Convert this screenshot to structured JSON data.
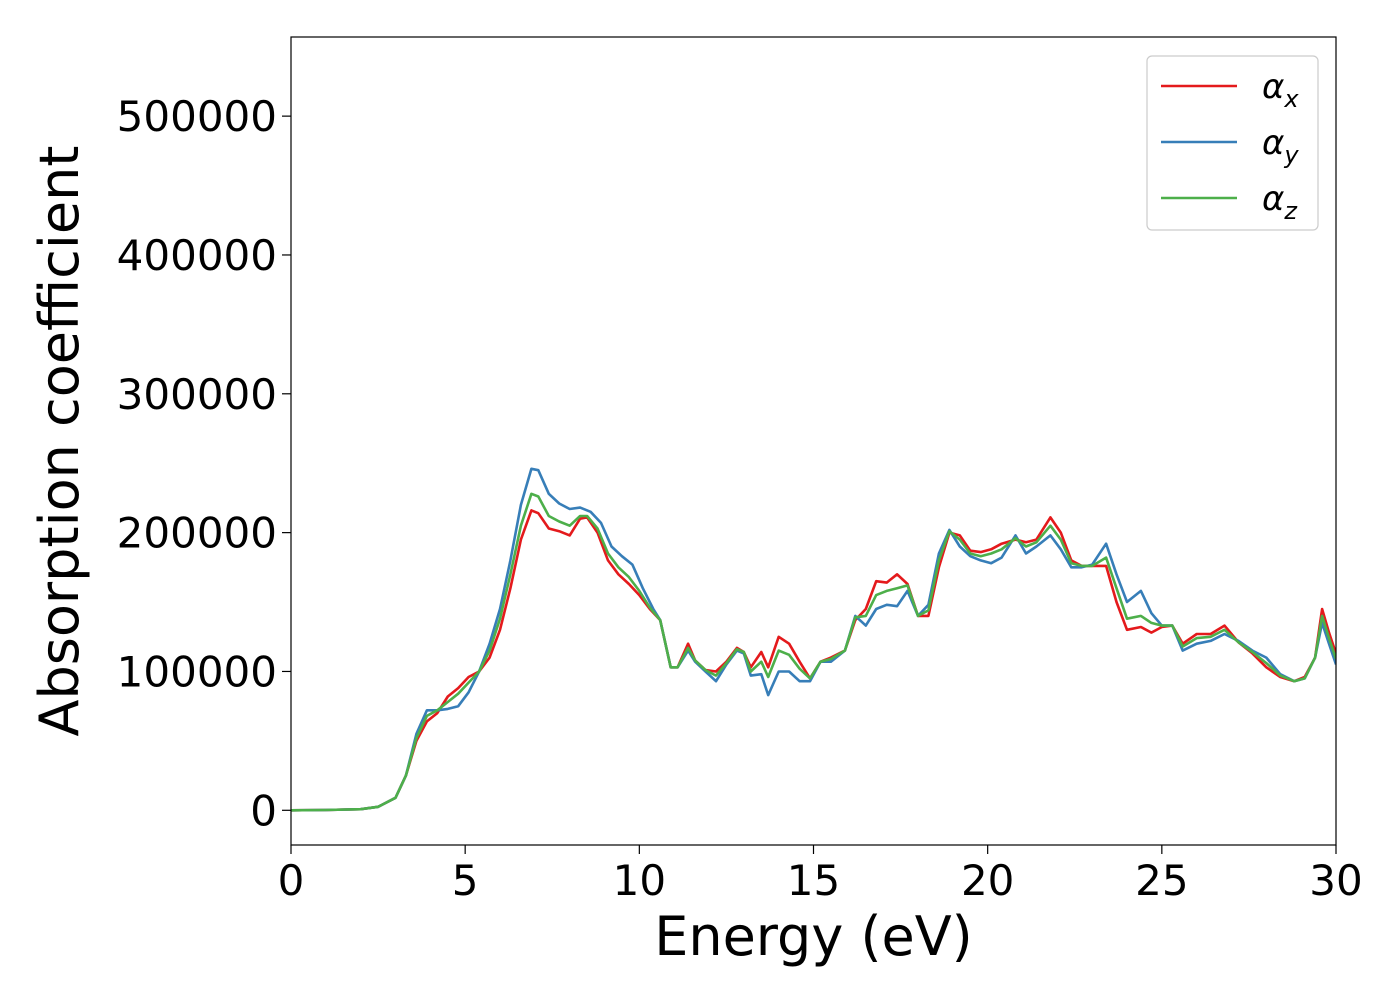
{
  "chart_data": {
    "type": "line",
    "title": "",
    "xlabel": "Energy (eV)",
    "ylabel": "Absorption coefficient",
    "xlim": [
      0,
      30
    ],
    "ylim": [
      -25000,
      557000
    ],
    "xticks": [
      0,
      5,
      10,
      15,
      20,
      25,
      30
    ],
    "xtick_labels": [
      "0",
      "5",
      "10",
      "15",
      "20",
      "25",
      "30"
    ],
    "yticks": [
      0,
      100000,
      200000,
      300000,
      400000,
      500000
    ],
    "ytick_labels": [
      "0",
      "100000",
      "200000",
      "300000",
      "400000",
      "500000"
    ],
    "grid": false,
    "legend_position": "top-right",
    "series": [
      {
        "name": "α_x",
        "legend_symbol": "α",
        "legend_sub": "x",
        "color": "#e41a1c",
        "points": [
          [
            0,
            0
          ],
          [
            1,
            200
          ],
          [
            2,
            800
          ],
          [
            2.5,
            2500
          ],
          [
            3,
            9000
          ],
          [
            3.3,
            25000
          ],
          [
            3.6,
            50000
          ],
          [
            3.9,
            64000
          ],
          [
            4.2,
            70000
          ],
          [
            4.5,
            82000
          ],
          [
            4.8,
            88000
          ],
          [
            5.1,
            96000
          ],
          [
            5.4,
            100000
          ],
          [
            5.7,
            110000
          ],
          [
            6.0,
            130000
          ],
          [
            6.3,
            160000
          ],
          [
            6.6,
            195000
          ],
          [
            6.9,
            216000
          ],
          [
            7.1,
            214000
          ],
          [
            7.4,
            203000
          ],
          [
            7.7,
            201000
          ],
          [
            8.0,
            198000
          ],
          [
            8.3,
            210000
          ],
          [
            8.5,
            211000
          ],
          [
            8.8,
            200000
          ],
          [
            9.1,
            180000
          ],
          [
            9.4,
            170000
          ],
          [
            9.7,
            163000
          ],
          [
            10.0,
            155000
          ],
          [
            10.3,
            145000
          ],
          [
            10.6,
            137000
          ],
          [
            10.9,
            103000
          ],
          [
            11.1,
            103000
          ],
          [
            11.4,
            120000
          ],
          [
            11.6,
            108000
          ],
          [
            11.9,
            101000
          ],
          [
            12.2,
            100000
          ],
          [
            12.5,
            107000
          ],
          [
            12.8,
            117000
          ],
          [
            13.0,
            114000
          ],
          [
            13.2,
            103000
          ],
          [
            13.5,
            114000
          ],
          [
            13.7,
            103000
          ],
          [
            14.0,
            125000
          ],
          [
            14.3,
            120000
          ],
          [
            14.6,
            107000
          ],
          [
            14.9,
            95000
          ],
          [
            15.2,
            107000
          ],
          [
            15.5,
            110000
          ],
          [
            15.9,
            115000
          ],
          [
            16.2,
            137000
          ],
          [
            16.5,
            145000
          ],
          [
            16.8,
            165000
          ],
          [
            17.1,
            164000
          ],
          [
            17.4,
            170000
          ],
          [
            17.7,
            163000
          ],
          [
            18.0,
            140000
          ],
          [
            18.3,
            140000
          ],
          [
            18.6,
            175000
          ],
          [
            18.9,
            200000
          ],
          [
            19.2,
            198000
          ],
          [
            19.5,
            187000
          ],
          [
            19.8,
            186000
          ],
          [
            20.1,
            188000
          ],
          [
            20.4,
            192000
          ],
          [
            20.8,
            195000
          ],
          [
            21.1,
            193000
          ],
          [
            21.4,
            195000
          ],
          [
            21.8,
            211000
          ],
          [
            22.1,
            200000
          ],
          [
            22.4,
            180000
          ],
          [
            22.7,
            176000
          ],
          [
            23.0,
            176000
          ],
          [
            23.4,
            176000
          ],
          [
            23.7,
            150000
          ],
          [
            24.0,
            130000
          ],
          [
            24.4,
            132000
          ],
          [
            24.7,
            128000
          ],
          [
            25.0,
            132000
          ],
          [
            25.3,
            133000
          ],
          [
            25.6,
            120000
          ],
          [
            26.0,
            127000
          ],
          [
            26.4,
            127000
          ],
          [
            26.8,
            133000
          ],
          [
            27.2,
            121000
          ],
          [
            27.6,
            113000
          ],
          [
            28.0,
            103000
          ],
          [
            28.4,
            96000
          ],
          [
            28.8,
            93000
          ],
          [
            29.1,
            96000
          ],
          [
            29.4,
            110000
          ],
          [
            29.6,
            145000
          ],
          [
            29.8,
            128000
          ],
          [
            30.0,
            113000
          ]
        ]
      },
      {
        "name": "α_y",
        "legend_symbol": "α",
        "legend_sub": "y",
        "color": "#377eb8",
        "points": [
          [
            0,
            0
          ],
          [
            1,
            200
          ],
          [
            2,
            800
          ],
          [
            2.5,
            2500
          ],
          [
            3,
            9000
          ],
          [
            3.3,
            25000
          ],
          [
            3.6,
            55000
          ],
          [
            3.9,
            72000
          ],
          [
            4.2,
            72000
          ],
          [
            4.5,
            73000
          ],
          [
            4.8,
            75000
          ],
          [
            5.1,
            85000
          ],
          [
            5.4,
            100000
          ],
          [
            5.7,
            120000
          ],
          [
            6.0,
            145000
          ],
          [
            6.3,
            180000
          ],
          [
            6.6,
            220000
          ],
          [
            6.9,
            246000
          ],
          [
            7.1,
            245000
          ],
          [
            7.4,
            228000
          ],
          [
            7.7,
            221000
          ],
          [
            8.0,
            217000
          ],
          [
            8.3,
            218000
          ],
          [
            8.6,
            215000
          ],
          [
            8.9,
            207000
          ],
          [
            9.2,
            190000
          ],
          [
            9.5,
            183000
          ],
          [
            9.8,
            177000
          ],
          [
            10.1,
            160000
          ],
          [
            10.4,
            145000
          ],
          [
            10.6,
            137000
          ],
          [
            10.9,
            103000
          ],
          [
            11.1,
            103000
          ],
          [
            11.4,
            115000
          ],
          [
            11.6,
            107000
          ],
          [
            11.9,
            100000
          ],
          [
            12.2,
            93000
          ],
          [
            12.5,
            105000
          ],
          [
            12.8,
            115000
          ],
          [
            13.0,
            113000
          ],
          [
            13.2,
            97000
          ],
          [
            13.5,
            98000
          ],
          [
            13.7,
            83000
          ],
          [
            14.0,
            100000
          ],
          [
            14.3,
            100000
          ],
          [
            14.6,
            93000
          ],
          [
            14.9,
            93000
          ],
          [
            15.2,
            107000
          ],
          [
            15.5,
            107000
          ],
          [
            15.9,
            115000
          ],
          [
            16.2,
            140000
          ],
          [
            16.5,
            133000
          ],
          [
            16.8,
            145000
          ],
          [
            17.1,
            148000
          ],
          [
            17.4,
            147000
          ],
          [
            17.7,
            158000
          ],
          [
            18.0,
            140000
          ],
          [
            18.3,
            148000
          ],
          [
            18.6,
            185000
          ],
          [
            18.9,
            202000
          ],
          [
            19.2,
            190000
          ],
          [
            19.5,
            183000
          ],
          [
            19.8,
            180000
          ],
          [
            20.1,
            178000
          ],
          [
            20.4,
            182000
          ],
          [
            20.8,
            198000
          ],
          [
            21.1,
            185000
          ],
          [
            21.4,
            190000
          ],
          [
            21.8,
            198000
          ],
          [
            22.1,
            188000
          ],
          [
            22.4,
            175000
          ],
          [
            22.7,
            175000
          ],
          [
            23.0,
            177000
          ],
          [
            23.4,
            192000
          ],
          [
            23.7,
            170000
          ],
          [
            24.0,
            150000
          ],
          [
            24.4,
            158000
          ],
          [
            24.7,
            142000
          ],
          [
            25.0,
            133000
          ],
          [
            25.3,
            133000
          ],
          [
            25.6,
            115000
          ],
          [
            26.0,
            120000
          ],
          [
            26.4,
            122000
          ],
          [
            26.8,
            127000
          ],
          [
            27.2,
            122000
          ],
          [
            27.6,
            115000
          ],
          [
            28.0,
            110000
          ],
          [
            28.4,
            98000
          ],
          [
            28.8,
            93000
          ],
          [
            29.1,
            95000
          ],
          [
            29.4,
            110000
          ],
          [
            29.6,
            135000
          ],
          [
            29.8,
            120000
          ],
          [
            30.0,
            105000
          ]
        ]
      },
      {
        "name": "α_z",
        "legend_symbol": "α",
        "legend_sub": "z",
        "color": "#4daf4a",
        "points": [
          [
            0,
            0
          ],
          [
            1,
            200
          ],
          [
            2,
            800
          ],
          [
            2.5,
            2500
          ],
          [
            3,
            9000
          ],
          [
            3.3,
            25000
          ],
          [
            3.6,
            52000
          ],
          [
            3.9,
            68000
          ],
          [
            4.2,
            72000
          ],
          [
            4.5,
            78000
          ],
          [
            4.8,
            84000
          ],
          [
            5.1,
            92000
          ],
          [
            5.4,
            100000
          ],
          [
            5.7,
            115000
          ],
          [
            6.0,
            138000
          ],
          [
            6.3,
            170000
          ],
          [
            6.6,
            205000
          ],
          [
            6.9,
            228000
          ],
          [
            7.1,
            226000
          ],
          [
            7.4,
            212000
          ],
          [
            7.7,
            208000
          ],
          [
            8.0,
            205000
          ],
          [
            8.3,
            212000
          ],
          [
            8.5,
            212000
          ],
          [
            8.8,
            203000
          ],
          [
            9.1,
            185000
          ],
          [
            9.4,
            175000
          ],
          [
            9.7,
            168000
          ],
          [
            10.0,
            158000
          ],
          [
            10.3,
            146000
          ],
          [
            10.6,
            137000
          ],
          [
            10.9,
            103000
          ],
          [
            11.1,
            103000
          ],
          [
            11.4,
            117000
          ],
          [
            11.6,
            108000
          ],
          [
            11.9,
            101000
          ],
          [
            12.2,
            97000
          ],
          [
            12.5,
            106000
          ],
          [
            12.8,
            116000
          ],
          [
            13.0,
            114000
          ],
          [
            13.2,
            100000
          ],
          [
            13.5,
            107000
          ],
          [
            13.7,
            96000
          ],
          [
            14.0,
            115000
          ],
          [
            14.3,
            112000
          ],
          [
            14.6,
            102000
          ],
          [
            14.9,
            95000
          ],
          [
            15.2,
            107000
          ],
          [
            15.5,
            109000
          ],
          [
            15.9,
            115000
          ],
          [
            16.2,
            139000
          ],
          [
            16.5,
            140000
          ],
          [
            16.8,
            155000
          ],
          [
            17.1,
            158000
          ],
          [
            17.4,
            160000
          ],
          [
            17.7,
            162000
          ],
          [
            18.0,
            140000
          ],
          [
            18.3,
            144000
          ],
          [
            18.6,
            180000
          ],
          [
            18.9,
            201000
          ],
          [
            19.2,
            195000
          ],
          [
            19.5,
            185000
          ],
          [
            19.8,
            183000
          ],
          [
            20.1,
            185000
          ],
          [
            20.4,
            188000
          ],
          [
            20.8,
            196000
          ],
          [
            21.1,
            190000
          ],
          [
            21.4,
            193000
          ],
          [
            21.8,
            205000
          ],
          [
            22.1,
            195000
          ],
          [
            22.4,
            178000
          ],
          [
            22.7,
            176000
          ],
          [
            23.0,
            176000
          ],
          [
            23.4,
            182000
          ],
          [
            23.7,
            160000
          ],
          [
            24.0,
            138000
          ],
          [
            24.4,
            140000
          ],
          [
            24.7,
            135000
          ],
          [
            25.0,
            133000
          ],
          [
            25.3,
            133000
          ],
          [
            25.6,
            118000
          ],
          [
            26.0,
            124000
          ],
          [
            26.4,
            125000
          ],
          [
            26.8,
            130000
          ],
          [
            27.2,
            121000
          ],
          [
            27.6,
            114000
          ],
          [
            28.0,
            106000
          ],
          [
            28.4,
            97000
          ],
          [
            28.8,
            93000
          ],
          [
            29.1,
            95000
          ],
          [
            29.4,
            110000
          ],
          [
            29.6,
            140000
          ],
          [
            29.8,
            124000
          ],
          [
            30.0,
            109000
          ]
        ]
      }
    ]
  }
}
